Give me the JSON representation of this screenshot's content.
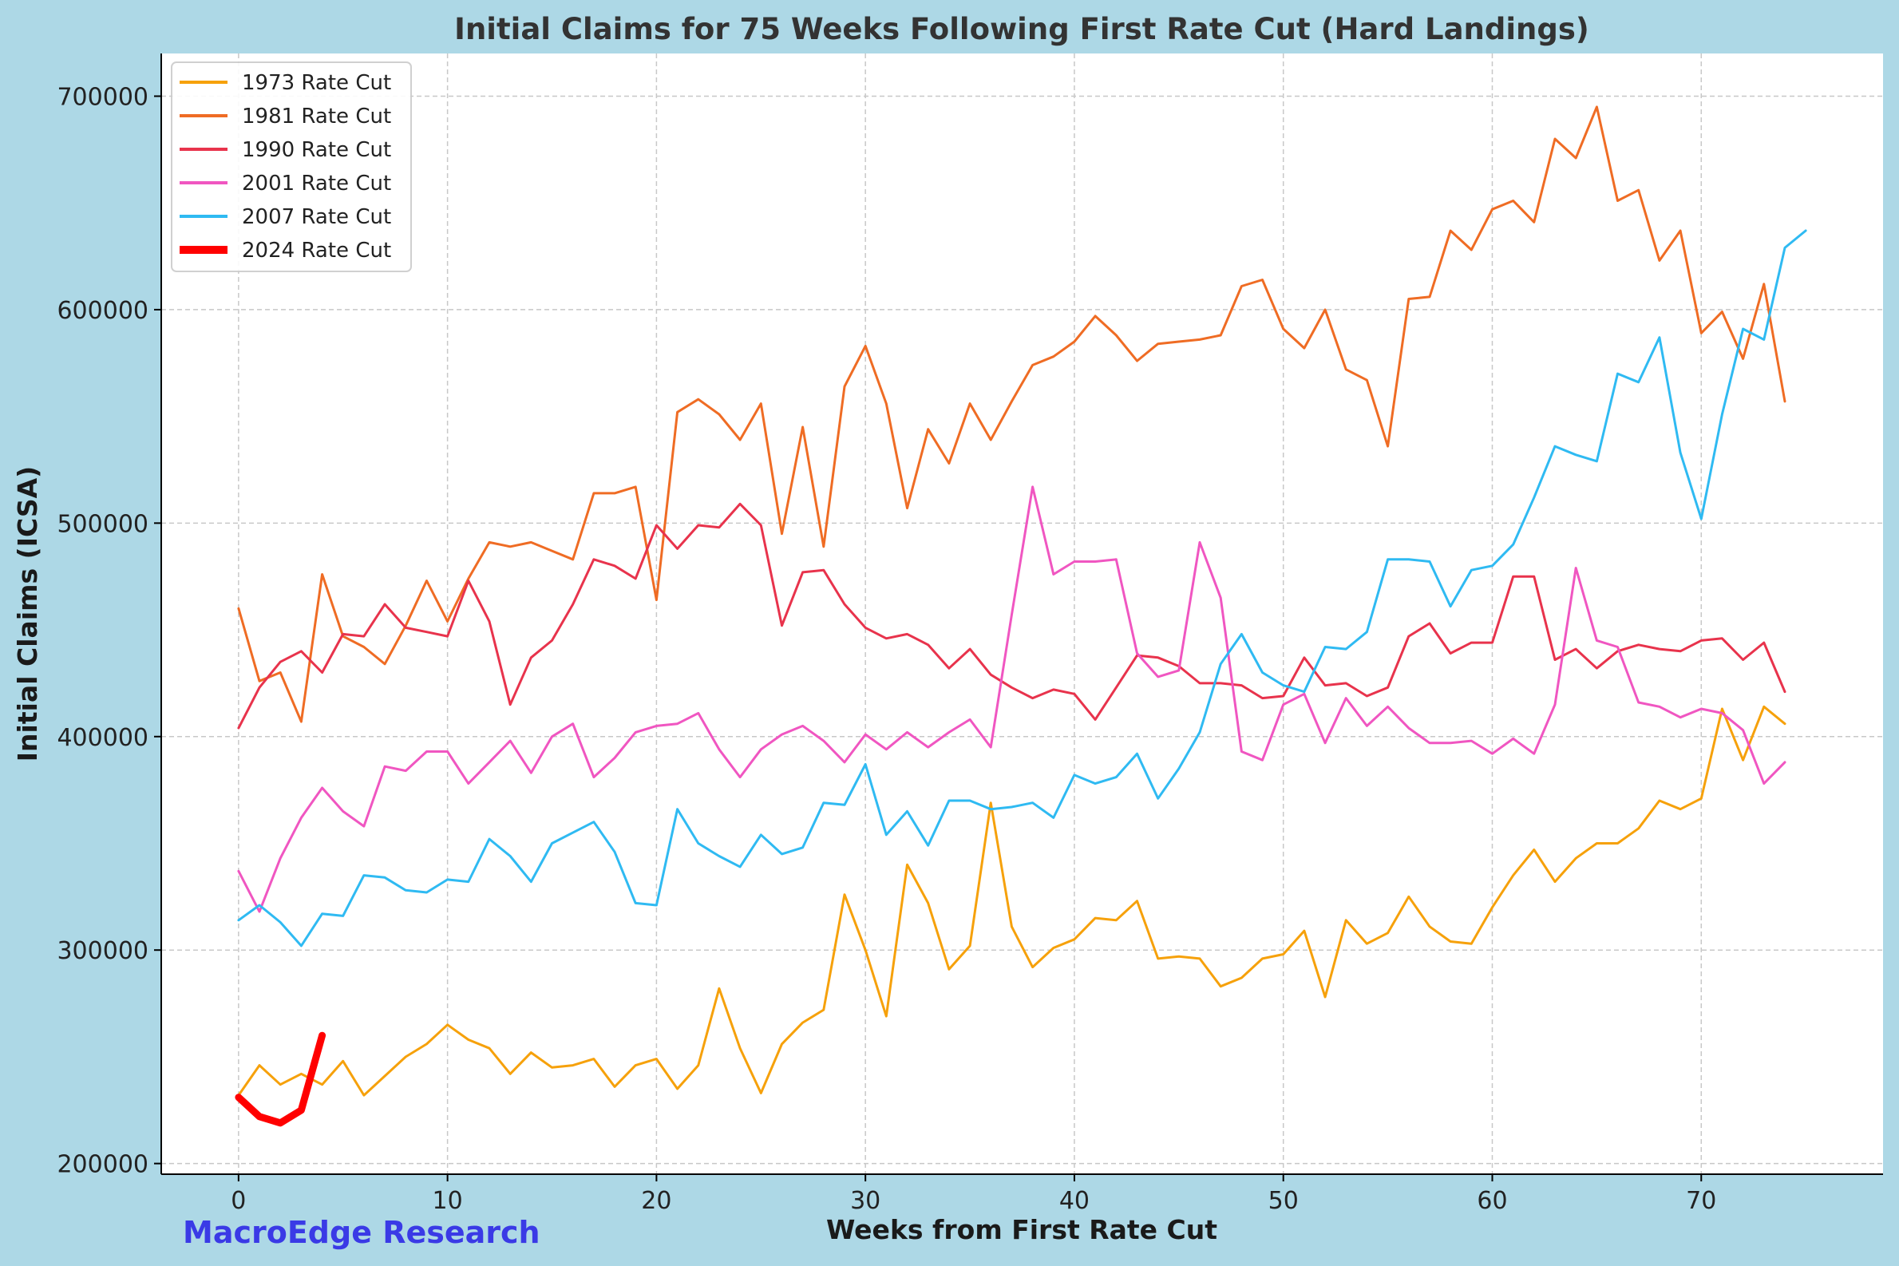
{
  "watermark": "MacroEdge Research",
  "chart_data": {
    "type": "line",
    "title": "Initial Claims for 75 Weeks Following First Rate Cut (Hard Landings)",
    "xlabel": "Weeks from First Rate Cut",
    "ylabel": "Initial Claims (ICSA)",
    "xlim": [
      -3.7,
      78.7
    ],
    "ylim": [
      195000,
      720000
    ],
    "xticks": [
      0,
      10,
      20,
      30,
      40,
      50,
      60,
      70
    ],
    "yticks": [
      200000,
      300000,
      400000,
      500000,
      600000,
      700000
    ],
    "grid": true,
    "legend_position": "top-left",
    "series": [
      {
        "name": "1973 Rate Cut",
        "color": "#f6a10b",
        "width": 3,
        "values": [
          232000,
          246000,
          237000,
          242000,
          237000,
          248000,
          232000,
          241000,
          250000,
          256000,
          265000,
          258000,
          254000,
          242000,
          252000,
          245000,
          246000,
          249000,
          236000,
          246000,
          249000,
          235000,
          246000,
          282000,
          254000,
          233000,
          256000,
          266000,
          272000,
          326000,
          300000,
          269000,
          340000,
          322000,
          291000,
          302000,
          369000,
          311000,
          292000,
          301000,
          305000,
          315000,
          314000,
          323000,
          296000,
          297000,
          296000,
          283000,
          287000,
          296000,
          298000,
          309000,
          278000,
          314000,
          303000,
          308000,
          325000,
          311000,
          304000,
          303000,
          320000,
          335000,
          347000,
          332000,
          343000,
          350000,
          350000,
          357000,
          370000,
          366000,
          371000,
          413000,
          389000,
          414000,
          406000
        ]
      },
      {
        "name": "1981 Rate Cut",
        "color": "#ef6c24",
        "width": 3,
        "values": [
          460000,
          426000,
          430000,
          407000,
          476000,
          447000,
          442000,
          434000,
          452000,
          473000,
          454000,
          474000,
          491000,
          489000,
          491000,
          487000,
          483000,
          514000,
          514000,
          517000,
          464000,
          552000,
          558000,
          551000,
          539000,
          556000,
          495000,
          545000,
          489000,
          564000,
          583000,
          556000,
          507000,
          544000,
          528000,
          556000,
          539000,
          557000,
          574000,
          578000,
          585000,
          597000,
          588000,
          576000,
          584000,
          585000,
          586000,
          588000,
          611000,
          614000,
          591000,
          582000,
          600000,
          572000,
          567000,
          536000,
          605000,
          606000,
          637000,
          628000,
          647000,
          651000,
          641000,
          680000,
          671000,
          695000,
          651000,
          656000,
          623000,
          637000,
          589000,
          599000,
          577000,
          612000,
          557000
        ]
      },
      {
        "name": "1990 Rate Cut",
        "color": "#e8334c",
        "width": 3,
        "values": [
          404000,
          423000,
          435000,
          440000,
          430000,
          448000,
          447000,
          462000,
          451000,
          449000,
          447000,
          473000,
          454000,
          415000,
          437000,
          445000,
          462000,
          483000,
          480000,
          474000,
          499000,
          488000,
          499000,
          498000,
          509000,
          499000,
          452000,
          477000,
          478000,
          462000,
          451000,
          446000,
          448000,
          443000,
          432000,
          441000,
          429000,
          423000,
          418000,
          422000,
          420000,
          408000,
          423000,
          438000,
          437000,
          433000,
          425000,
          425000,
          424000,
          418000,
          419000,
          437000,
          424000,
          425000,
          419000,
          423000,
          447000,
          453000,
          439000,
          444000,
          444000,
          475000,
          475000,
          436000,
          441000,
          432000,
          440000,
          443000,
          441000,
          440000,
          445000,
          446000,
          436000,
          444000,
          421000
        ]
      },
      {
        "name": "2001 Rate Cut",
        "color": "#f056c1",
        "width": 3,
        "values": [
          337000,
          318000,
          343000,
          362000,
          376000,
          365000,
          358000,
          386000,
          384000,
          393000,
          393000,
          378000,
          388000,
          398000,
          383000,
          400000,
          406000,
          381000,
          390000,
          402000,
          405000,
          406000,
          411000,
          394000,
          381000,
          394000,
          401000,
          405000,
          398000,
          388000,
          401000,
          394000,
          402000,
          395000,
          402000,
          408000,
          395000,
          457000,
          517000,
          476000,
          482000,
          482000,
          483000,
          439000,
          428000,
          431000,
          491000,
          465000,
          393000,
          389000,
          415000,
          420000,
          397000,
          418000,
          405000,
          414000,
          404000,
          397000,
          397000,
          398000,
          392000,
          399000,
          392000,
          415000,
          479000,
          445000,
          442000,
          416000,
          414000,
          409000,
          413000,
          411000,
          403000,
          378000,
          388000
        ]
      },
      {
        "name": "2007 Rate Cut",
        "color": "#2fbaf2",
        "width": 3,
        "values": [
          314000,
          321000,
          313000,
          302000,
          317000,
          316000,
          335000,
          334000,
          328000,
          327000,
          333000,
          332000,
          352000,
          344000,
          332000,
          350000,
          355000,
          360000,
          346000,
          322000,
          321000,
          366000,
          350000,
          344000,
          339000,
          354000,
          345000,
          348000,
          369000,
          368000,
          387000,
          354000,
          365000,
          349000,
          370000,
          370000,
          366000,
          367000,
          369000,
          362000,
          382000,
          378000,
          381000,
          392000,
          371000,
          385000,
          402000,
          434000,
          448000,
          430000,
          424000,
          421000,
          442000,
          441000,
          449000,
          483000,
          483000,
          482000,
          461000,
          478000,
          480000,
          490000,
          512000,
          536000,
          532000,
          529000,
          570000,
          566000,
          587000,
          533000,
          502000,
          551000,
          591000,
          586000,
          629000,
          637000
        ]
      },
      {
        "name": "2024 Rate Cut",
        "color": "#ff0000",
        "width": 9,
        "values": [
          231000,
          222000,
          219000,
          225000,
          260000
        ]
      }
    ]
  }
}
